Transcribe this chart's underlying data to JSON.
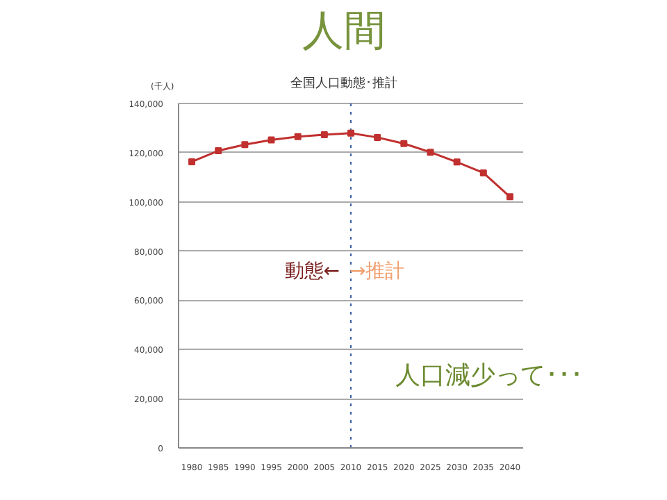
{
  "chart_data": {
    "type": "line",
    "title": "人間",
    "subtitle": "全国人口動態･推計",
    "ylabel": "(千人)",
    "categories": [
      "1980",
      "1985",
      "1990",
      "1995",
      "2000",
      "2005",
      "2010",
      "2015",
      "2020",
      "2025",
      "2030",
      "2035",
      "2040"
    ],
    "series": [
      {
        "color": "#c0302f",
        "values": [
          116300,
          120800,
          123300,
          125200,
          126500,
          127300,
          127900,
          126200,
          123700,
          120200,
          116200,
          111800,
          102100
        ]
      }
    ],
    "ylim": [
      0,
      140000
    ],
    "yticks": [
      0,
      {
        "value": 20000,
        "label": "20,000"
      },
      {
        "value": 40000,
        "label": "40,000"
      },
      {
        "value": 60000,
        "label": "60,000"
      },
      {
        "value": 80000,
        "label": "80,000"
      },
      {
        "value": 100000,
        "label": "100,000"
      },
      {
        "value": 120000,
        "label": "120,000"
      },
      {
        "value": 140000,
        "label": "140,000"
      }
    ],
    "ref_lines": [
      {
        "axis": "x",
        "value": "2010",
        "color": "#3a5fa8",
        "line_style": "dotted"
      }
    ],
    "annotations": [
      "動態←",
      "→推計",
      "人口減少って･･･"
    ],
    "grid": "y",
    "marker": "square",
    "line_style": "solid"
  }
}
